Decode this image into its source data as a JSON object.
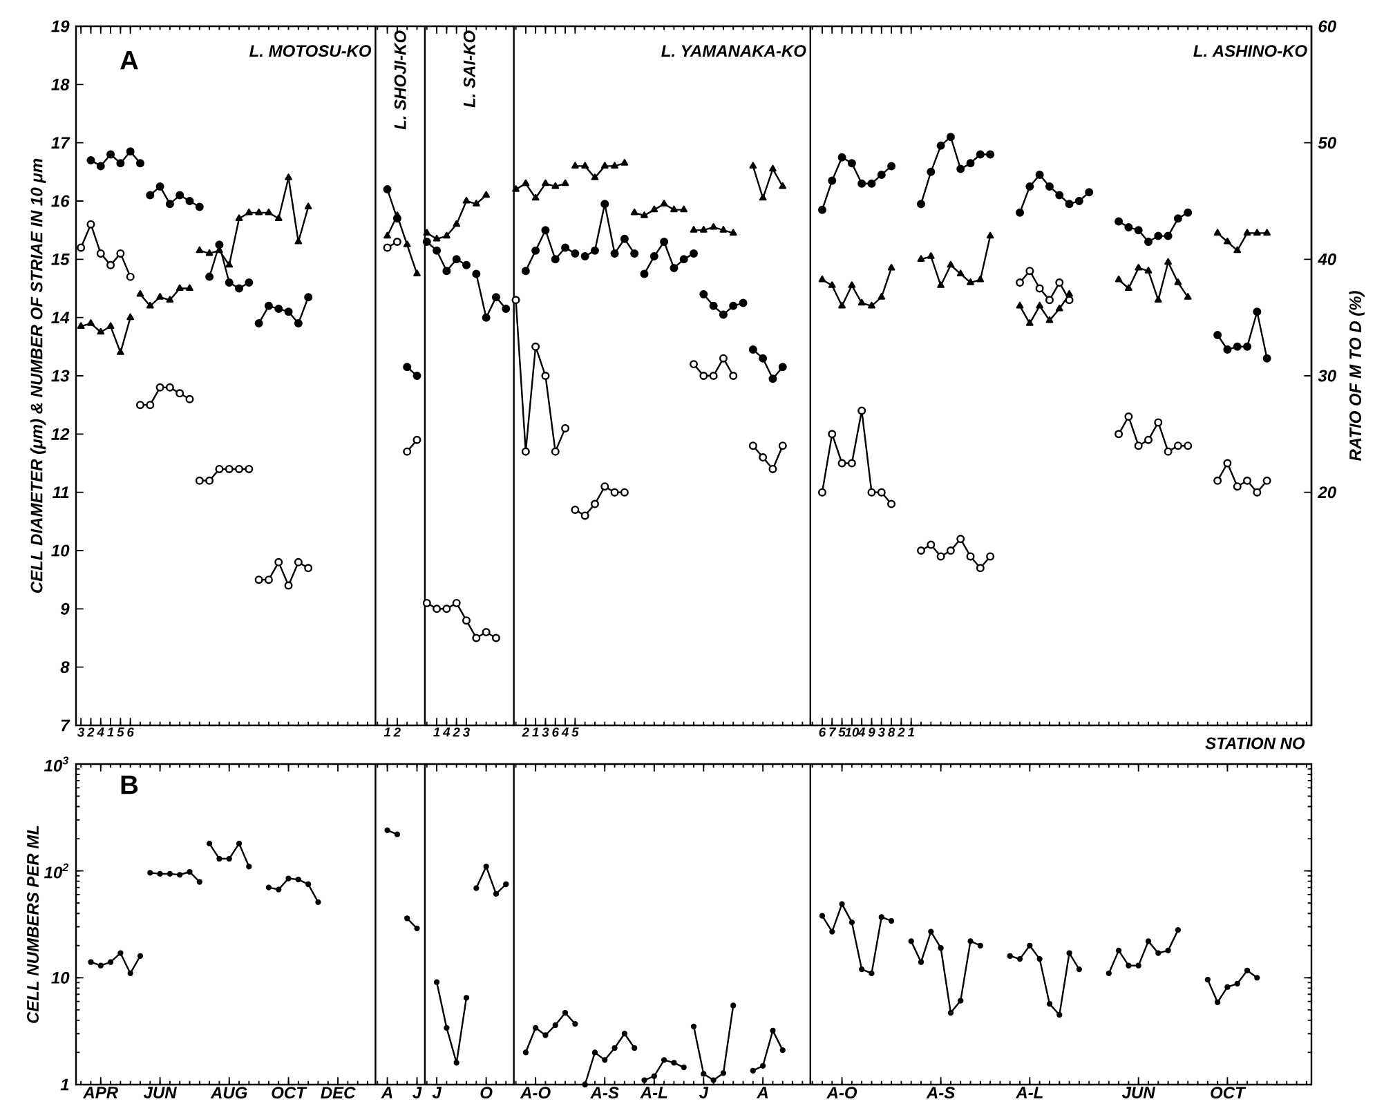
{
  "chart_data": [
    {
      "type": "line",
      "title": "A",
      "xlabel": "STATION NO",
      "ylabel": "CELL DIAMETER (μm) & NUMBER OF STRIAE IN 10 μm",
      "y2label": "RATIO OF M TO D (%)",
      "ylim": [
        7,
        19
      ],
      "yticks": [
        7,
        8,
        9,
        10,
        11,
        12,
        13,
        14,
        15,
        16,
        17,
        18,
        19
      ],
      "y2lim": [
        0,
        60
      ],
      "y2ticks": [
        20,
        30,
        40,
        50,
        60
      ],
      "categories": [
        "3",
        "2",
        "4",
        "1",
        "5",
        "6",
        null,
        null,
        null,
        null,
        null,
        null,
        null,
        null,
        null,
        null,
        null,
        null,
        null,
        null,
        null,
        null,
        null,
        null,
        null,
        null,
        null,
        null,
        null,
        null,
        null,
        "1",
        "2",
        null,
        null,
        null,
        "1",
        "4",
        "2",
        "3",
        null,
        null,
        null,
        null,
        null,
        "2",
        "1",
        "3",
        "6",
        "4",
        "5",
        null,
        null,
        null,
        null,
        null,
        null,
        null,
        null,
        null,
        null,
        null,
        null,
        null,
        null,
        null,
        null,
        null,
        null,
        null,
        null,
        null,
        null,
        null,
        null,
        "6",
        "7",
        "5",
        "10",
        "4",
        "9",
        "3",
        "8",
        "2",
        "1",
        null,
        null,
        null,
        null,
        null,
        null,
        null,
        null,
        null,
        null,
        null,
        null,
        null,
        null,
        null,
        null,
        null,
        null,
        null,
        null,
        null,
        null,
        null,
        null,
        null,
        null,
        null,
        null,
        null,
        null,
        null,
        null,
        null,
        null,
        null,
        null,
        null,
        null,
        null,
        null
      ],
      "annotations": [
        "L. MOTOSU-KO",
        "L. SHOJI-KO",
        "L. SAI-KO",
        "L. YAMANAKA-KO",
        "L. ASHINO-KO"
      ],
      "marker": "circle",
      "line_style": "solid",
      "series": [
        {
          "color": "#000000",
          "marker": "circle",
          "values": [
            null,
            16.7,
            16.6,
            16.8,
            16.65,
            16.85,
            16.65,
            null,
            null,
            null,
            null,
            null,
            null,
            14.7,
            15.25,
            14.6,
            14.5,
            14.6,
            null,
            null,
            null,
            null,
            null,
            null,
            null,
            null,
            null,
            null,
            null,
            null,
            null,
            16.2,
            15.7,
            null,
            null,
            15.3,
            15.15,
            14.8,
            15.0,
            14.9,
            null,
            null,
            null,
            null,
            null,
            14.8,
            15.15,
            15.5,
            15.0,
            15.2,
            15.1,
            null,
            null,
            null,
            null,
            null,
            null,
            14.75,
            15.05,
            15.3,
            14.85,
            15.0,
            15.1,
            null,
            null,
            null,
            null,
            null,
            13.45,
            13.3,
            12.95,
            13.15,
            null,
            null,
            null,
            null,
            null,
            null,
            null,
            null,
            null,
            null,
            null,
            null,
            null,
            15.95,
            16.5,
            16.95,
            17.1,
            16.55,
            16.65,
            16.8,
            16.8,
            null,
            null,
            null,
            null,
            null,
            null,
            null,
            null,
            null,
            null,
            null,
            null,
            15.65,
            15.55,
            15.5,
            15.3,
            15.4,
            15.4,
            15.7,
            15.8,
            null,
            null,
            null,
            null,
            null,
            null,
            null,
            null,
            null,
            null,
            null,
            null
          ]
        },
        {
          "color": "#000000",
          "marker": "circle",
          "values": [
            null,
            null,
            null,
            null,
            null,
            null,
            null,
            16.1,
            16.25,
            15.95,
            16.1,
            16.0,
            15.9,
            null,
            null,
            null,
            null,
            null,
            13.9,
            14.2,
            14.15,
            14.1,
            13.9,
            14.35,
            null,
            null,
            null,
            null,
            null,
            null,
            null,
            null,
            null,
            13.15,
            13.0,
            null,
            null,
            null,
            null,
            null,
            14.75,
            14.0,
            14.35,
            14.15,
            null,
            null,
            null,
            null,
            null,
            null,
            null,
            15.05,
            15.15,
            15.95,
            15.1,
            15.35,
            15.1,
            null,
            null,
            null,
            null,
            null,
            null,
            14.4,
            14.2,
            14.05,
            14.2,
            14.25,
            null,
            null,
            null,
            null,
            null,
            null,
            null,
            15.85,
            16.35,
            16.75,
            16.65,
            16.3,
            16.3,
            16.45,
            16.6,
            null,
            null,
            null,
            null,
            null,
            null,
            null,
            null,
            null,
            null,
            null,
            null,
            15.8,
            16.25,
            16.45,
            16.25,
            16.1,
            15.95,
            16.0,
            16.15,
            null,
            null,
            null,
            null,
            null,
            null,
            null,
            null,
            null,
            null,
            null,
            null,
            13.7,
            13.45,
            13.5,
            13.5,
            14.1,
            13.3,
            null,
            null,
            null,
            null
          ]
        },
        {
          "color": "#000000",
          "marker": "triangle",
          "values": [
            13.85,
            13.9,
            13.75,
            13.85,
            13.4,
            14.0,
            null,
            null,
            null,
            null,
            null,
            null,
            15.15,
            15.1,
            15.15,
            14.9,
            15.7,
            15.8,
            15.8,
            15.8,
            15.7,
            16.4,
            15.3,
            15.9,
            null,
            null,
            null,
            null,
            null,
            null,
            null,
            null,
            null,
            null,
            null,
            15.45,
            15.35,
            15.4,
            15.6,
            16.0,
            15.95,
            16.1,
            null,
            null,
            null,
            null,
            null,
            null,
            null,
            null,
            16.6,
            16.6,
            16.4,
            16.6,
            16.6,
            16.65,
            null,
            null,
            null,
            null,
            null,
            null,
            15.5,
            15.5,
            15.55,
            15.5,
            15.45,
            null,
            null,
            null,
            null,
            null,
            null,
            null,
            null,
            14.65,
            14.55,
            14.2,
            14.55,
            14.25,
            14.2,
            14.35,
            14.85,
            null,
            null,
            null,
            null,
            null,
            null,
            null,
            null,
            null,
            null,
            null,
            null,
            14.2,
            13.9,
            14.2,
            13.95,
            14.15,
            14.4,
            null,
            null,
            null,
            null,
            null,
            null,
            null,
            null,
            null,
            null,
            null,
            null,
            null,
            null,
            15.45,
            15.3,
            15.15,
            15.45,
            15.45,
            15.45,
            null,
            null,
            null,
            null
          ]
        },
        {
          "color": "#000000",
          "marker": "triangle",
          "values": [
            null,
            null,
            null,
            null,
            null,
            null,
            14.4,
            14.2,
            14.35,
            14.3,
            14.5,
            14.5,
            null,
            null,
            null,
            null,
            null,
            null,
            null,
            null,
            null,
            null,
            null,
            null,
            null,
            null,
            null,
            null,
            null,
            null,
            null,
            15.4,
            15.75,
            15.25,
            14.75,
            null,
            null,
            null,
            null,
            null,
            null,
            null,
            null,
            null,
            16.2,
            16.3,
            16.05,
            16.3,
            16.25,
            16.3,
            null,
            null,
            null,
            null,
            null,
            null,
            15.8,
            15.75,
            15.85,
            15.95,
            15.85,
            15.85,
            null,
            null,
            null,
            null,
            null,
            null,
            16.6,
            16.05,
            16.55,
            16.25,
            null,
            null,
            null,
            null,
            null,
            null,
            null,
            null,
            null,
            null,
            null,
            null,
            null,
            15.0,
            15.05,
            14.55,
            14.9,
            14.75,
            14.6,
            14.65,
            15.4,
            null,
            null,
            null,
            null,
            null,
            null,
            null,
            null,
            null,
            null,
            null,
            null,
            14.65,
            14.5,
            14.85,
            14.8,
            14.3,
            14.95,
            14.6,
            14.35,
            null,
            null,
            null,
            null,
            null,
            null,
            null,
            null,
            null,
            null,
            null,
            null
          ]
        },
        {
          "color": "#000000",
          "marker": "circle",
          "axis": "y2",
          "values": [
            41,
            43,
            40.5,
            39.5,
            40.5,
            38.5,
            null,
            null,
            null,
            null,
            null,
            null,
            21,
            21,
            22,
            22,
            22,
            22,
            null,
            null,
            null,
            null,
            null,
            null,
            null,
            null,
            null,
            null,
            null,
            null,
            null,
            41,
            41.5,
            null,
            null,
            10.5,
            10,
            10,
            10.5,
            9,
            7.5,
            8,
            7.5,
            null,
            null,
            null,
            null,
            null,
            null,
            null,
            18.5,
            18,
            19,
            20.5,
            20,
            20,
            null,
            null,
            null,
            null,
            null,
            null,
            null,
            null,
            null,
            null,
            null,
            null,
            24,
            23,
            22,
            24,
            null,
            null,
            null,
            null,
            null,
            null,
            null,
            null,
            null,
            null,
            null,
            null,
            null,
            15,
            15.5,
            14.5,
            15,
            16,
            14.5,
            13.5,
            14.5,
            null,
            null,
            null,
            null,
            null,
            null,
            null,
            null,
            null,
            null,
            null,
            null,
            25,
            26.5,
            24,
            24.5,
            26,
            23.5,
            24,
            24,
            null,
            null,
            null,
            null,
            null,
            null,
            null,
            null,
            null,
            null,
            null,
            null
          ]
        },
        {
          "color": "#000000",
          "marker": "circle",
          "axis": "y2",
          "values": [
            null,
            null,
            null,
            null,
            null,
            null,
            27.5,
            27.5,
            29,
            29,
            28.5,
            28,
            null,
            null,
            null,
            null,
            null,
            null,
            12.5,
            12.5,
            14,
            12,
            14,
            13.5,
            null,
            null,
            null,
            null,
            null,
            null,
            null,
            null,
            null,
            23.5,
            24.5,
            null,
            null,
            null,
            null,
            null,
            null,
            null,
            null,
            null,
            36.5,
            23.5,
            32.5,
            30,
            23.5,
            25.5,
            null,
            null,
            null,
            null,
            null,
            null,
            null,
            null,
            null,
            null,
            null,
            null,
            31,
            30,
            30,
            31.5,
            30,
            null,
            null,
            null,
            null,
            null,
            null,
            null,
            null,
            20,
            25,
            22.5,
            22.5,
            27,
            20,
            20,
            19,
            null,
            null,
            null,
            null,
            null,
            null,
            null,
            null,
            null,
            null,
            null,
            null,
            38,
            39,
            37.5,
            36.5,
            38,
            36.5,
            null,
            null,
            null,
            null,
            null,
            null,
            null,
            null,
            null,
            null,
            null,
            null,
            null,
            null,
            21,
            22.5,
            20.5,
            21,
            20,
            21,
            null,
            null,
            null,
            null
          ]
        }
      ]
    },
    {
      "type": "line",
      "title": "B",
      "ylabel": "CELL NUMBERS PER ML",
      "log": "y",
      "ylim": [
        1,
        1000
      ],
      "yticks": [
        1,
        10,
        {
          "value": 100,
          "label": "10$^{2}$"
        },
        {
          "value": 1000,
          "label": "10$^{3}$"
        }
      ],
      "categories": [
        null,
        null,
        "APR",
        null,
        null,
        null,
        null,
        null,
        "JUN",
        null,
        null,
        null,
        null,
        null,
        null,
        "AUG",
        null,
        null,
        null,
        null,
        null,
        "OCT",
        null,
        null,
        null,
        null,
        "DEC",
        null,
        null,
        null,
        null,
        "A",
        null,
        null,
        "J",
        null,
        "J",
        null,
        null,
        null,
        null,
        "O",
        null,
        null,
        null,
        null,
        "A-O",
        null,
        null,
        null,
        null,
        null,
        null,
        "A-S",
        null,
        null,
        null,
        null,
        "A-L",
        null,
        null,
        null,
        null,
        "J",
        null,
        null,
        null,
        null,
        null,
        "A",
        null,
        null,
        null,
        null,
        null,
        null,
        null,
        "A-O",
        null,
        null,
        null,
        null,
        null,
        null,
        null,
        null,
        null,
        "A-S",
        null,
        null,
        null,
        null,
        null,
        null,
        null,
        null,
        "A-L",
        null,
        null,
        null,
        null,
        null,
        null,
        null,
        null,
        null,
        null,
        "JUN",
        null,
        null,
        null,
        null,
        null,
        null,
        null,
        null,
        "OCT",
        null,
        null,
        null,
        null,
        null,
        null,
        null,
        null
      ],
      "marker": "circle",
      "line_style": "solid",
      "series": [
        {
          "color": "#000000",
          "values": [
            null,
            14,
            13,
            14,
            17,
            11,
            16,
            null,
            null,
            null,
            null,
            null,
            null,
            180,
            130,
            130,
            180,
            110,
            null,
            null,
            null,
            null,
            null,
            null,
            null,
            null,
            null,
            null,
            null,
            null,
            null,
            240,
            220,
            null,
            null,
            null,
            9.1,
            3.4,
            1.6,
            6.5,
            null,
            null,
            null,
            null,
            null,
            2.0,
            3.4,
            2.9,
            3.6,
            4.7,
            3.7,
            null,
            null,
            null,
            null,
            null,
            null,
            1.1,
            1.2,
            1.7,
            1.6,
            1.45,
            null,
            null,
            null,
            null,
            null,
            null,
            1.35,
            1.5,
            3.2,
            2.1,
            null,
            null,
            null,
            null,
            null,
            null,
            null,
            null,
            null,
            null,
            null,
            null,
            22,
            14,
            27,
            19,
            4.7,
            6.1,
            22,
            20,
            null,
            null,
            null,
            null,
            null,
            null,
            null,
            null,
            null,
            null,
            null,
            null,
            11,
            18,
            13,
            13,
            22,
            17,
            18,
            28,
            null,
            null,
            null,
            null,
            null,
            null,
            null,
            null,
            null,
            null,
            null,
            null,
            null
          ]
        },
        {
          "color": "#000000",
          "values": [
            null,
            null,
            null,
            null,
            null,
            null,
            null,
            96,
            94,
            94,
            92,
            98,
            79,
            null,
            null,
            null,
            null,
            null,
            null,
            70,
            67,
            85,
            83,
            75,
            51,
            null,
            null,
            null,
            null,
            null,
            null,
            null,
            null,
            36,
            29,
            null,
            null,
            null,
            null,
            null,
            69,
            110,
            61,
            75,
            null,
            null,
            null,
            null,
            null,
            null,
            null,
            1,
            2.0,
            1.7,
            2.2,
            3.0,
            2.2,
            null,
            null,
            null,
            null,
            null,
            3.5,
            1.26,
            1.1,
            1.28,
            5.5,
            null,
            null,
            null,
            null,
            null,
            null,
            null,
            null,
            38,
            27,
            49,
            33,
            12,
            11,
            37,
            34,
            null,
            null,
            null,
            null,
            null,
            null,
            null,
            null,
            null,
            null,
            null,
            16,
            15,
            20,
            15,
            5.7,
            4.5,
            17,
            12,
            null,
            null,
            null,
            null,
            null,
            null,
            null,
            null,
            null,
            null,
            null,
            null,
            9.6,
            5.9,
            8.2,
            8.8,
            11.7,
            10,
            null,
            null,
            null,
            null,
            null
          ]
        }
      ]
    }
  ]
}
